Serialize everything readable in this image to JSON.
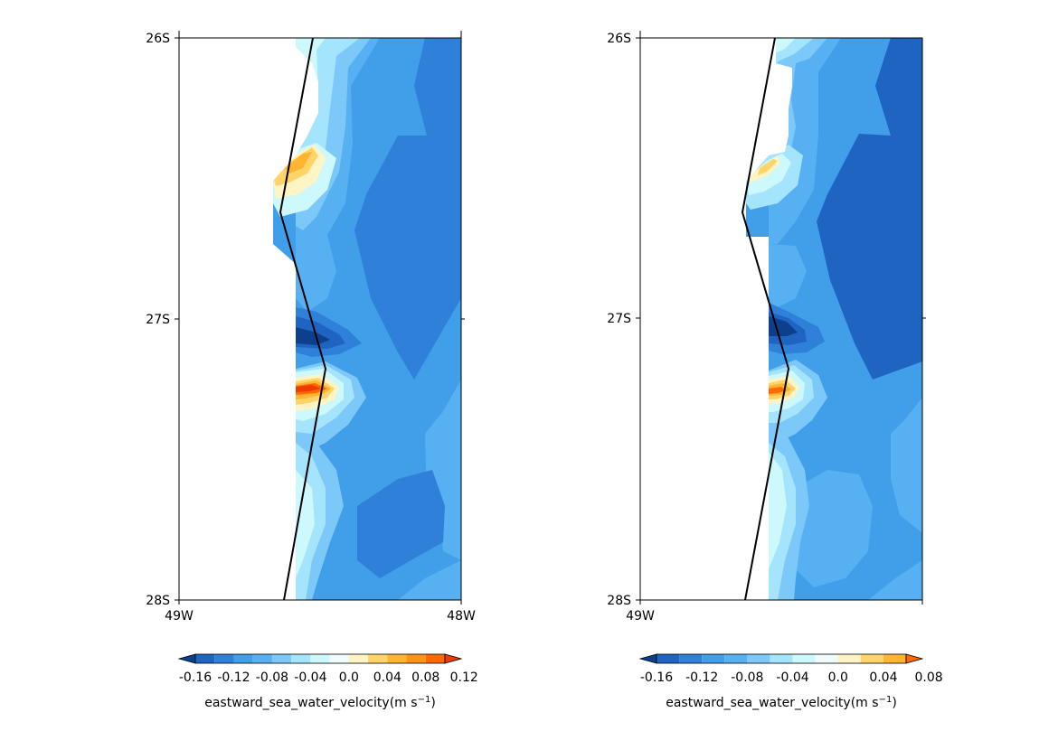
{
  "chart_data": [
    {
      "type": "contour-map",
      "panel": "left",
      "x_ticks": [
        "49W",
        "48W"
      ],
      "y_ticks": [
        "26S",
        "27S",
        "28S"
      ],
      "xlim": [
        -49,
        -48
      ],
      "ylim": [
        -28,
        -26
      ],
      "colorbar": {
        "levels": [
          -0.16,
          -0.14,
          -0.12,
          -0.1,
          -0.08,
          -0.06,
          -0.04,
          -0.02,
          0.0,
          0.02,
          0.04,
          0.06,
          0.08,
          0.1,
          0.12,
          0.14
        ],
        "tick_labels": [
          "-0.16",
          "-0.12",
          "-0.08",
          "-0.04",
          "0.0",
          "0.04",
          "0.08",
          "0.12"
        ],
        "colors": [
          "#0c3f8c",
          "#1f64c0",
          "#2f80d8",
          "#419ee8",
          "#56b0f2",
          "#7cc8f8",
          "#a4e4fc",
          "#cdf8fc",
          "#f0fcfc",
          "#fff4c4",
          "#ffd468",
          "#ffb432",
          "#ff9414",
          "#ff6a00",
          "#ee3c00"
        ],
        "label_text": "eastward_sea_water_velocity(m s",
        "label_sup": "−1",
        "label_close": ")"
      }
    },
    {
      "type": "contour-map",
      "panel": "right",
      "x_ticks": [
        "49W"
      ],
      "y_ticks": [
        "26S",
        "27S",
        "28S"
      ],
      "xlim": [
        -49,
        -48
      ],
      "ylim": [
        -28,
        -26
      ],
      "colorbar": {
        "levels": [
          -0.16,
          -0.14,
          -0.12,
          -0.1,
          -0.08,
          -0.06,
          -0.04,
          -0.02,
          0.0,
          0.02,
          0.04,
          0.06,
          0.08,
          0.1
        ],
        "tick_labels": [
          "-0.16",
          "-0.12",
          "-0.08",
          "-0.04",
          "0.0",
          "0.04",
          "0.08"
        ],
        "colors": [
          "#0c3f8c",
          "#1f64c0",
          "#2f80d8",
          "#419ee8",
          "#56b0f2",
          "#7cc8f8",
          "#a4e4fc",
          "#cdf8fc",
          "#f0fcfc",
          "#fff4c4",
          "#ffd468",
          "#ffb432",
          "#ff6a00"
        ],
        "label_text": "eastward_sea_water_velocity(m s",
        "label_sup": "−1",
        "label_close": ")"
      }
    }
  ]
}
